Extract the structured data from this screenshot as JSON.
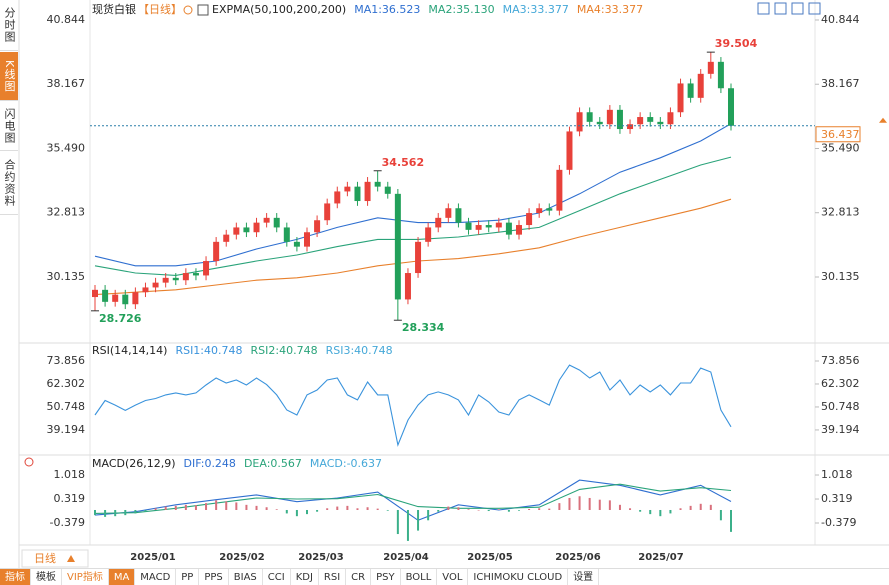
{
  "sidebar": {
    "tabs": [
      "分时图",
      "K线图",
      "闪电图",
      "合约资料"
    ]
  },
  "chart_data": [
    {
      "type": "candlestick",
      "title": "现货白银",
      "period": "【日线】",
      "legend_title": "EXPMA(50,100,200,200)",
      "up_color": "#e8413a",
      "down_color": "#22a05a",
      "open": [
        29.3,
        29.6,
        29.1,
        29.4,
        29.0,
        29.5,
        29.7,
        29.9,
        30.1,
        30.0,
        30.3,
        30.2,
        30.8,
        31.6,
        31.9,
        32.2,
        32.0,
        32.4,
        32.6,
        32.2,
        31.6,
        31.4,
        32.0,
        32.5,
        33.2,
        33.7,
        33.9,
        33.3,
        34.1,
        33.9,
        33.6,
        29.2,
        30.3,
        31.6,
        32.2,
        32.6,
        33.0,
        32.4,
        32.1,
        32.3,
        32.2,
        32.4,
        31.9,
        32.3,
        32.8,
        33.0,
        32.9,
        34.6,
        36.2,
        37.0,
        36.6,
        36.5,
        37.1,
        36.3,
        36.5,
        36.8,
        36.6,
        36.5,
        37.0,
        38.2,
        37.6,
        38.6,
        39.1,
        38.0
      ],
      "high": [
        29.8,
        29.8,
        29.6,
        29.6,
        29.7,
        29.9,
        30.1,
        30.3,
        30.3,
        30.5,
        30.5,
        31.0,
        31.8,
        32.1,
        32.4,
        32.4,
        32.6,
        32.8,
        32.8,
        32.4,
        31.8,
        32.2,
        32.7,
        33.4,
        33.9,
        34.1,
        34.1,
        34.3,
        34.562,
        34.1,
        33.8,
        30.5,
        31.8,
        32.4,
        32.8,
        33.2,
        33.2,
        32.6,
        32.5,
        32.5,
        32.6,
        32.6,
        32.5,
        33.0,
        33.2,
        33.2,
        34.8,
        36.4,
        37.2,
        37.2,
        36.8,
        37.3,
        37.3,
        36.7,
        37.0,
        37.0,
        36.8,
        37.2,
        38.4,
        38.4,
        38.8,
        39.504,
        39.3,
        38.2
      ],
      "low": [
        28.726,
        28.9,
        28.9,
        28.8,
        28.8,
        29.3,
        29.5,
        29.7,
        29.8,
        29.8,
        30.0,
        30.0,
        30.6,
        31.4,
        31.7,
        31.8,
        31.8,
        32.2,
        32.0,
        31.4,
        31.2,
        31.2,
        31.8,
        32.3,
        33.0,
        33.5,
        33.1,
        33.1,
        33.7,
        33.4,
        28.334,
        29.0,
        30.1,
        31.4,
        32.0,
        32.4,
        32.2,
        31.9,
        31.9,
        32.0,
        32.0,
        31.7,
        31.7,
        32.1,
        32.6,
        32.7,
        32.7,
        34.4,
        36.0,
        36.4,
        36.3,
        36.3,
        36.1,
        36.1,
        36.3,
        36.4,
        36.3,
        36.3,
        36.8,
        37.4,
        37.4,
        38.4,
        37.8,
        36.237
      ],
      "close": [
        29.6,
        29.1,
        29.4,
        29.0,
        29.5,
        29.7,
        29.9,
        30.1,
        30.0,
        30.3,
        30.2,
        30.8,
        31.6,
        31.9,
        32.2,
        32.0,
        32.4,
        32.6,
        32.2,
        31.6,
        31.4,
        32.0,
        32.5,
        33.2,
        33.7,
        33.9,
        33.3,
        34.1,
        33.9,
        33.6,
        29.2,
        30.3,
        31.6,
        32.2,
        32.6,
        33.0,
        32.4,
        32.1,
        32.3,
        32.2,
        32.4,
        31.9,
        32.3,
        32.8,
        33.0,
        32.9,
        34.6,
        36.2,
        37.0,
        36.6,
        36.5,
        37.1,
        36.3,
        36.5,
        36.8,
        36.6,
        36.5,
        37.0,
        38.2,
        37.6,
        38.6,
        39.1,
        38.0,
        36.437
      ],
      "series": [
        {
          "name": "MA1:36.523",
          "color": "#2f6fd0",
          "x": [
            0,
            4,
            8,
            12,
            16,
            20,
            24,
            28,
            32,
            36,
            40,
            44,
            48,
            52,
            56,
            60,
            63
          ],
          "values": [
            31.0,
            30.6,
            30.6,
            30.8,
            31.3,
            31.7,
            32.2,
            32.6,
            32.4,
            32.4,
            32.5,
            32.8,
            33.6,
            34.5,
            35.1,
            35.8,
            36.523
          ]
        },
        {
          "name": "MA2:35.130",
          "color": "#2aa37a",
          "x": [
            0,
            4,
            8,
            12,
            16,
            20,
            24,
            28,
            32,
            36,
            40,
            44,
            48,
            52,
            56,
            60,
            63
          ],
          "values": [
            30.6,
            30.3,
            30.2,
            30.5,
            30.8,
            31.05,
            31.4,
            31.7,
            31.7,
            31.8,
            32.0,
            32.2,
            32.9,
            33.6,
            34.2,
            34.8,
            35.13
          ]
        },
        {
          "name": "MA3:33.377",
          "color": "#45a8d8"
        },
        {
          "name": "MA4:33.377",
          "color": "#e8802c",
          "x": [
            0,
            4,
            8,
            12,
            16,
            20,
            24,
            28,
            32,
            36,
            40,
            44,
            48,
            52,
            56,
            60,
            63
          ],
          "values": [
            29.4,
            29.5,
            29.6,
            29.8,
            30.0,
            30.1,
            30.3,
            30.6,
            30.8,
            30.9,
            31.1,
            31.35,
            31.8,
            32.2,
            32.6,
            33.0,
            33.377
          ]
        }
      ],
      "ylim": [
        27.51,
        41.26
      ],
      "yticks": [
        30.135,
        32.813,
        {
          "value": 35.49,
          "label": "35.490"
        },
        38.167,
        40.844
      ],
      "x_labels": [
        "2025/01",
        "2025/02",
        "2025/03",
        "2025/04",
        "2025/05",
        "2025/06",
        "2025/07"
      ]
    },
    {
      "type": "line",
      "legend_title": "RSI(14,14,14)",
      "series": [
        {
          "name": "RSI1:40.748",
          "color": "#3a93dc",
          "values": [
            46.7,
            54,
            51.7,
            49,
            51.7,
            54,
            55,
            56.8,
            57.8,
            56.8,
            57.8,
            61.8,
            65.3,
            62.8,
            64.3,
            61.8,
            65.3,
            62,
            56.8,
            49.2,
            46.7,
            56.8,
            59.3,
            64.3,
            65.3,
            56.8,
            54.3,
            63.3,
            56.8,
            56.8,
            31.6,
            44.2,
            51.7,
            56.8,
            58.3,
            56.8,
            54.3,
            46.7,
            56.8,
            53.3,
            48.2,
            46.7,
            54.3,
            56.8,
            54.3,
            51.7,
            64.3,
            71.8,
            69.3,
            65.3,
            68.3,
            59.3,
            64.3,
            56.8,
            61.8,
            58.3,
            61.8,
            56.8,
            62.8,
            62.8,
            70.3,
            68.3,
            49.2,
            40.748
          ]
        },
        {
          "name": "RSI2:40.748",
          "color": "#2aa37a"
        },
        {
          "name": "RSI3:40.748",
          "color": "#45a8d8"
        }
      ],
      "ylim": [
        27.6,
        81.9
      ],
      "yticks": [
        39.194,
        50.748,
        62.302,
        73.856
      ]
    },
    {
      "type": "bar",
      "legend_title": "MACD(26,12,9)",
      "series": [
        {
          "name": "DIF:0.248",
          "color": "#2f6fd0",
          "x": [
            0,
            4,
            8,
            12,
            16,
            20,
            24,
            28,
            32,
            36,
            40,
            44,
            48,
            52,
            56,
            60,
            63
          ],
          "values": [
            -0.15,
            -0.05,
            0.15,
            0.3,
            0.44,
            0.24,
            0.35,
            0.52,
            -0.3,
            0.15,
            0.0,
            0.15,
            0.87,
            0.72,
            0.44,
            0.72,
            0.248
          ]
        },
        {
          "name": "DEA:0.567",
          "color": "#2aa37a",
          "x": [
            0,
            4,
            8,
            12,
            16,
            20,
            24,
            28,
            32,
            36,
            40,
            44,
            48,
            52,
            56,
            60,
            63
          ],
          "values": [
            -0.1,
            -0.08,
            0.05,
            0.2,
            0.35,
            0.32,
            0.33,
            0.45,
            0.1,
            0.05,
            0.05,
            0.08,
            0.6,
            0.75,
            0.55,
            0.65,
            0.567
          ]
        },
        {
          "name": "MACD:-0.637",
          "color": "#45a8d8",
          "type": "bar",
          "up_color": "#d9707c",
          "down_color": "#3bb08a",
          "values": [
            -0.15,
            -0.2,
            -0.18,
            -0.15,
            -0.1,
            -0.05,
            0.05,
            0.1,
            0.12,
            0.15,
            0.14,
            0.2,
            0.28,
            0.25,
            0.22,
            0.15,
            0.12,
            0.08,
            0.02,
            -0.1,
            -0.18,
            -0.12,
            -0.05,
            0.05,
            0.1,
            0.12,
            0.05,
            0.08,
            0.04,
            -0.02,
            -0.7,
            -0.9,
            -0.6,
            -0.3,
            -0.05,
            0.1,
            0.08,
            0.02,
            0.0,
            -0.03,
            0.02,
            -0.05,
            -0.02,
            0.03,
            0.05,
            0.04,
            0.2,
            0.35,
            0.4,
            0.35,
            0.3,
            0.28,
            0.15,
            0.05,
            -0.05,
            -0.12,
            -0.18,
            -0.1,
            0.05,
            0.12,
            0.18,
            0.15,
            -0.3,
            -0.637
          ]
        }
      ],
      "ylim": [
        -1.019,
        1.455
      ],
      "yticks": [
        -0.379,
        0.319,
        1.018
      ]
    }
  ],
  "toolbar": {
    "period_button": "日线",
    "items": [
      "指标",
      "模板",
      "VIP指标",
      "MA",
      "MACD",
      "PP",
      "PPS",
      "BIAS",
      "CCI",
      "KDJ",
      "RSI",
      "CR",
      "PSY",
      "BOLL",
      "VOL",
      "ICHIMOKU CLOUD",
      "设置"
    ]
  }
}
